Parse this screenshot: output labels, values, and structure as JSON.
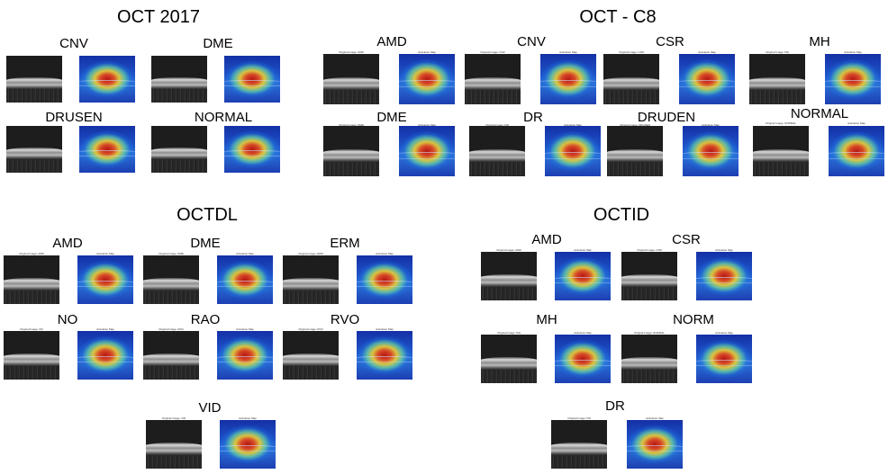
{
  "sections": {
    "oct2017": "OCT 2017",
    "octc8": "OCT - C8",
    "octdl": "OCTDL",
    "octid": "OCTID"
  },
  "labels": {
    "oct2017": [
      "CNV",
      "DME",
      "DRUSEN",
      "NORMAL"
    ],
    "octc8": [
      "AMD",
      "CNV",
      "CSR",
      "MH",
      "DME",
      "DR",
      "DRUDEN",
      "NORMAL"
    ],
    "octdl": [
      "AMD",
      "DME",
      "ERM",
      "NO",
      "RAO",
      "RVO",
      "VID"
    ],
    "octid": [
      "AMD",
      "CSR",
      "MH",
      "NORM",
      "DR"
    ]
  },
  "captions": {
    "octc8": [
      "Original Image: AMD",
      "Activation Map",
      "Original Image: CNV",
      "Activation Map",
      "Original Image: CSR",
      "Activation Map",
      "Original Image: MH",
      "Activation Map",
      "Original Image: DME",
      "Activation Map",
      "Original Image: DR",
      "Activation Map",
      "Original Image: DRUSEN",
      "Activation Map",
      "Original Image: NORMAL",
      "Activation Map"
    ],
    "octdl": [
      "Original Image: AMD",
      "Activation Map",
      "Original Image: DME",
      "Activation Map",
      "Original Image: ERM",
      "Activation Map",
      "Original Image: NO",
      "Activation Map",
      "Original Image: RAO",
      "Activation Map",
      "Original Image: RVO",
      "Activation Map",
      "Original Image: VID",
      "Activation Map"
    ],
    "octid": [
      "Original Image: AMD",
      "Activation Map",
      "Original Image: CSR",
      "Activation Map",
      "Original Image: MH",
      "Activation Map",
      "Original Image: NORMAL",
      "Activation Map",
      "Original Image: DR",
      "Activation Map"
    ]
  }
}
